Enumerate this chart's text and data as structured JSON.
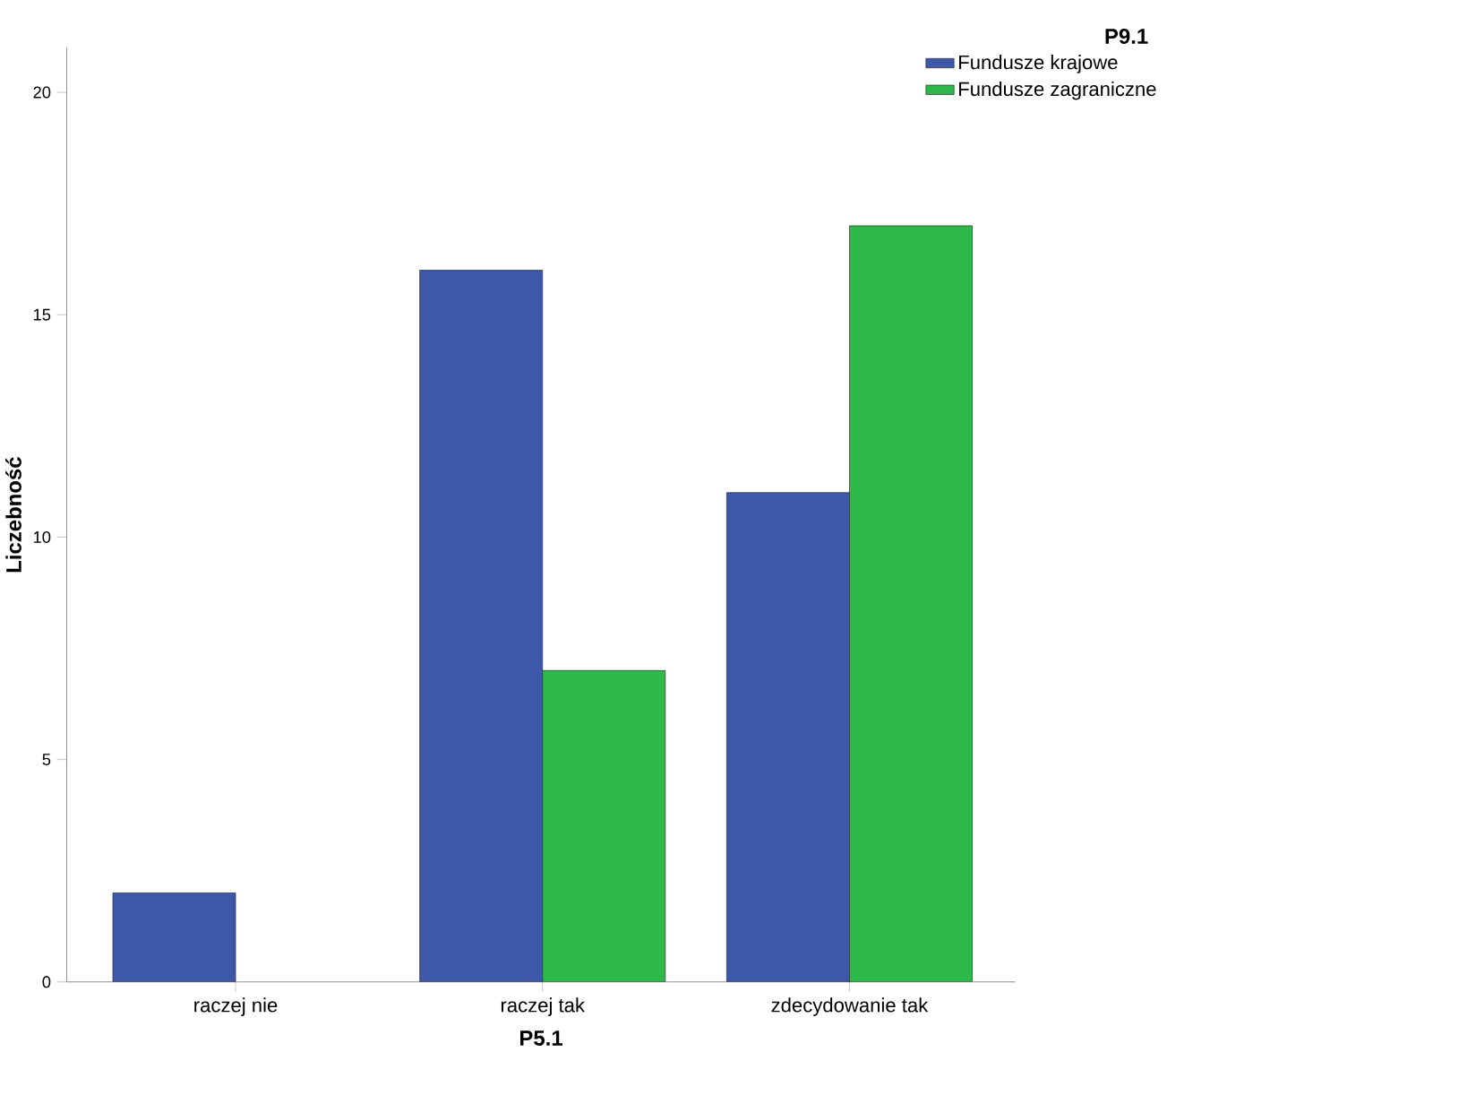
{
  "chart_data": {
    "type": "bar",
    "xlabel": "P5.1",
    "ylabel": "Liczebność",
    "legend_title": "P9.1",
    "categories": [
      "raczej nie",
      "raczej tak",
      "zdecydowanie tak"
    ],
    "series": [
      {
        "name": "Fundusze krajowe",
        "color": "#3d57a9",
        "values": [
          2,
          16,
          11
        ]
      },
      {
        "name": "Fundusze zagraniczne",
        "color": "#2db84a",
        "values": [
          null,
          7,
          17
        ]
      }
    ],
    "ylim": [
      0,
      21
    ],
    "yticks": [
      0,
      5,
      10,
      15,
      20
    ],
    "grid": false,
    "legend": "top right"
  }
}
